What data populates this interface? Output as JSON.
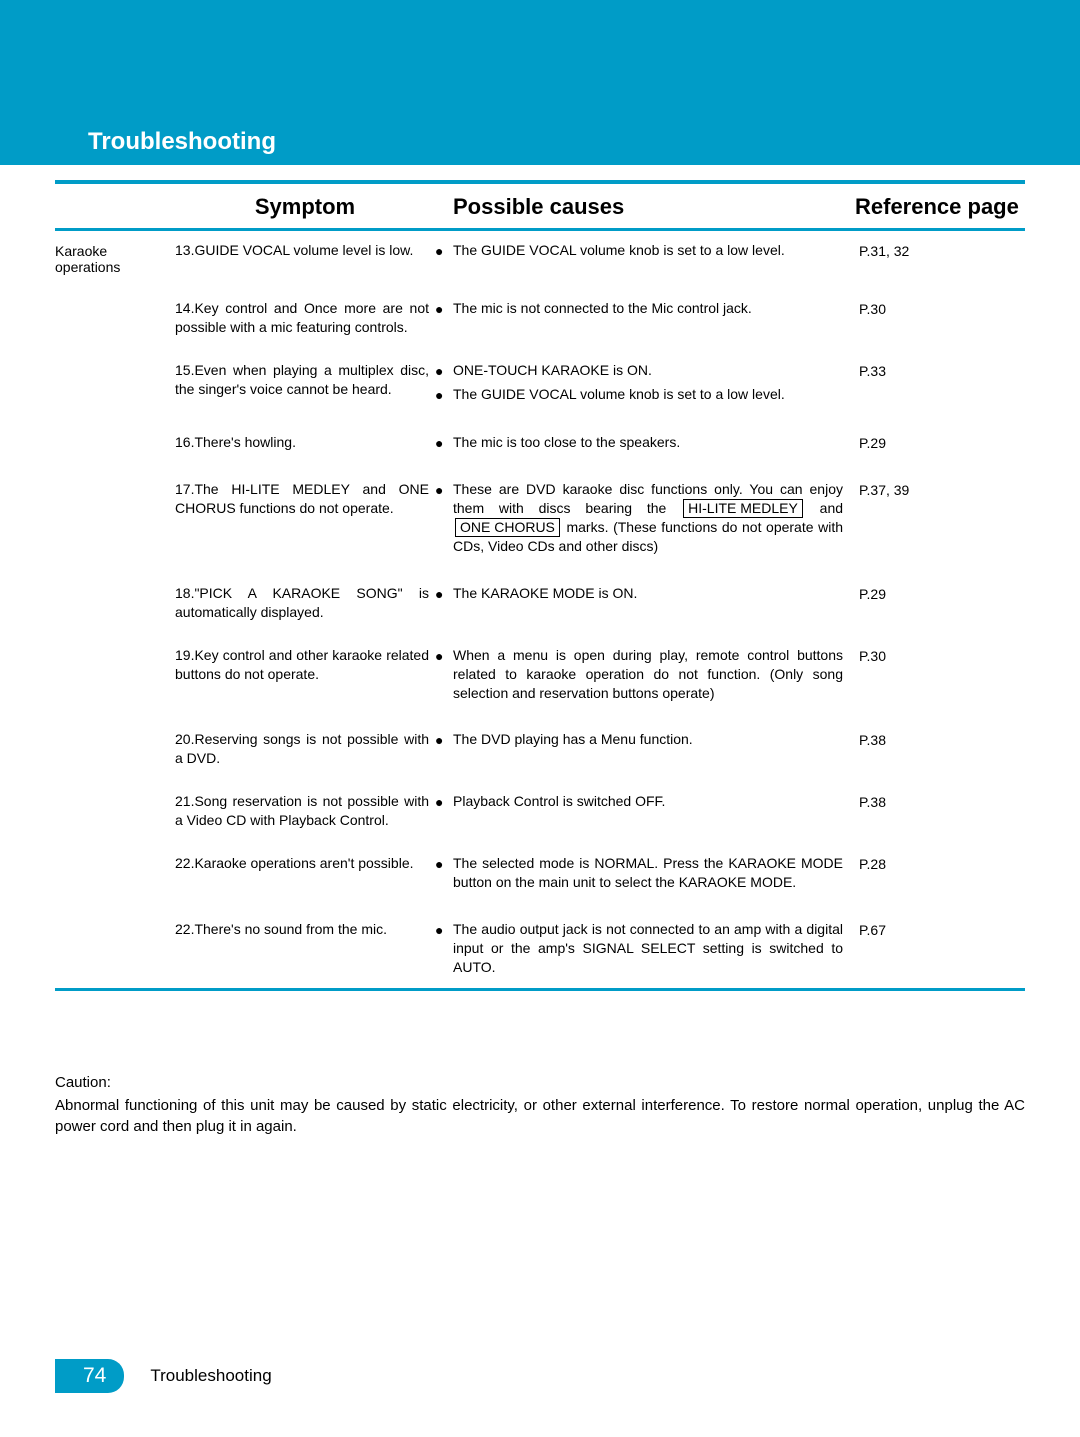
{
  "page": {
    "title": "Troubleshooting",
    "footer_label": "Troubleshooting",
    "page_number": "74"
  },
  "headers": {
    "symptom": "Symptom",
    "causes": "Possible causes",
    "ref": "Reference page"
  },
  "category_label": "Karaoke operations",
  "rows": [
    {
      "num": "13.",
      "symptom": "GUIDE VOCAL volume level is low.",
      "causes": [
        "The GUIDE VOCAL volume knob is set to a low level."
      ],
      "ref": "P.31, 32"
    },
    {
      "num": "14.",
      "symptom": "Key control and Once more are not possible with a mic featuring controls.",
      "causes": [
        "The mic is not connected to the Mic control jack."
      ],
      "ref": "P.30"
    },
    {
      "num": "15.",
      "symptom": "Even when playing a multiplex disc, the singer's voice cannot be heard.",
      "causes": [
        "ONE-TOUCH KARAOKE is ON.",
        "The GUIDE VOCAL volume knob is set to a low level."
      ],
      "ref": "P.33"
    },
    {
      "num": "16.",
      "symptom": "There's howling.",
      "causes": [
        "The mic is too close to the speakers."
      ],
      "ref": "P.29"
    },
    {
      "num": "17.",
      "symptom": "The HI-LITE MEDLEY and ONE CHORUS functions do not operate.",
      "causes_html": "These are DVD karaoke disc functions only. You can enjoy them with discs bearing the <span class=\"boxed\">HI-LITE MEDLEY</span> and <span class=\"boxed\">ONE CHORUS</span> marks. (These functions do not operate with CDs, Video CDs and other discs)",
      "ref": "P.37, 39"
    },
    {
      "num": "18.",
      "symptom": "\"PICK A KARAOKE SONG\" is automatically displayed.",
      "causes": [
        "The KARAOKE MODE is ON."
      ],
      "ref": "P.29"
    },
    {
      "num": "19.",
      "symptom": "Key control and other karaoke related buttons do not operate.",
      "causes": [
        "When a menu is open during play, remote control buttons related to karaoke operation do not function. (Only song selection and reservation buttons operate)"
      ],
      "ref": "P.30"
    },
    {
      "num": "20.",
      "symptom": "Reserving songs is not possible with a DVD.",
      "causes": [
        "The DVD playing has a Menu function."
      ],
      "ref": "P.38"
    },
    {
      "num": "21.",
      "symptom": "Song reservation is not possible with a Video CD with Playback Control.",
      "causes": [
        "Playback Control is switched OFF."
      ],
      "ref": "P.38"
    },
    {
      "num": "22.",
      "symptom": "Karaoke operations aren't possible.",
      "causes": [
        "The selected mode is NORMAL. Press the KARAOKE MODE button on the main unit to select the KARAOKE MODE."
      ],
      "ref": "P.28"
    },
    {
      "num": "22.",
      "symptom": "There's no sound from the mic.",
      "causes": [
        "The audio output jack is not connected to an amp with a digital input or the amp's SIGNAL SELECT setting is switched to AUTO."
      ],
      "ref": "P.67"
    }
  ],
  "caution": {
    "label": "Caution:",
    "text": "Abnormal functioning of this unit may be caused by static electricity, or other external interference. To restore normal operation, unplug the AC power cord and then plug it in again."
  },
  "colors": {
    "accent": "#009cc7",
    "text": "#000000",
    "bg": "#ffffff"
  }
}
